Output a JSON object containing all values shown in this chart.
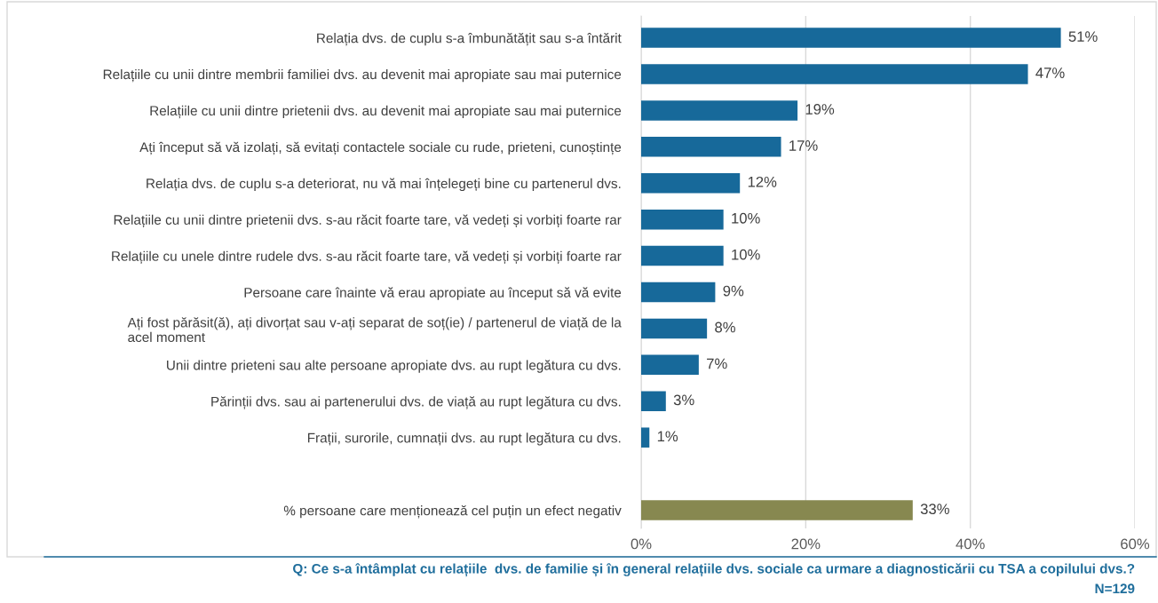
{
  "chart_data": {
    "type": "bar",
    "orientation": "horizontal",
    "categories": [
      "Relația dvs. de cuplu s-a îmbunătățit sau s-a întărit",
      "Relațiile cu unii dintre membrii familiei dvs. au devenit mai apropiate sau mai puternice",
      "Relațiile cu unii dintre prietenii dvs. au devenit mai apropiate sau mai puternice",
      "Ați început să vă izolați, să evitați contactele sociale cu rude, prieteni, cunoștințe",
      "Relația dvs. de cuplu s-a deteriorat, nu vă mai înțelegeți bine cu partenerul dvs.",
      "Relațiile cu unii dintre prietenii dvs. s-au răcit foarte tare, vă vedeți și vorbiți foarte rar",
      "Relațiile cu unele dintre rudele dvs. s-au răcit foarte tare, vă vedeți și vorbiți foarte rar",
      "Persoane care înainte vă erau apropiate au început să vă evite",
      "Ați fost părăsit(ă), ați divorțat sau v-ați separat de soț(ie) / partenerul de viață de la\nacel moment",
      "Unii dintre prieteni sau alte persoane apropiate dvs. au rupt legătura cu dvs.",
      "Părinții dvs. sau ai partenerului dvs. de viață au rupt legătura cu dvs.",
      "Frații, surorile, cumnații dvs. au rupt legătura cu dvs.",
      null,
      "% persoane care menționează cel puțin un efect negativ"
    ],
    "values": [
      51,
      47,
      19,
      17,
      12,
      10,
      10,
      9,
      8,
      7,
      3,
      1,
      null,
      33
    ],
    "colors": [
      "#17699a",
      "#17699a",
      "#17699a",
      "#17699a",
      "#17699a",
      "#17699a",
      "#17699a",
      "#17699a",
      "#17699a",
      "#17699a",
      "#17699a",
      "#17699a",
      "#17699a",
      "#878850"
    ],
    "value_labels": [
      "51%",
      "47%",
      "19%",
      "17%",
      "12%",
      "10%",
      "10%",
      "9%",
      "8%",
      "7%",
      "3%",
      "1%",
      null,
      "33%"
    ],
    "xlim": [
      0,
      60
    ],
    "xticks": [
      {
        "value": 0,
        "label": "0%"
      },
      {
        "value": 20,
        "label": "20%"
      },
      {
        "value": 40,
        "label": "40%"
      },
      {
        "value": 60,
        "label": "60%"
      }
    ],
    "grid": "x",
    "annotations": [
      "Q: Ce s-a întâmplat cu relațiile  dvs. de familie și în general relațiile dvs. sociale ca urmare a diagnosticării cu TSA a copilului dvs.?",
      "N=129"
    ]
  }
}
